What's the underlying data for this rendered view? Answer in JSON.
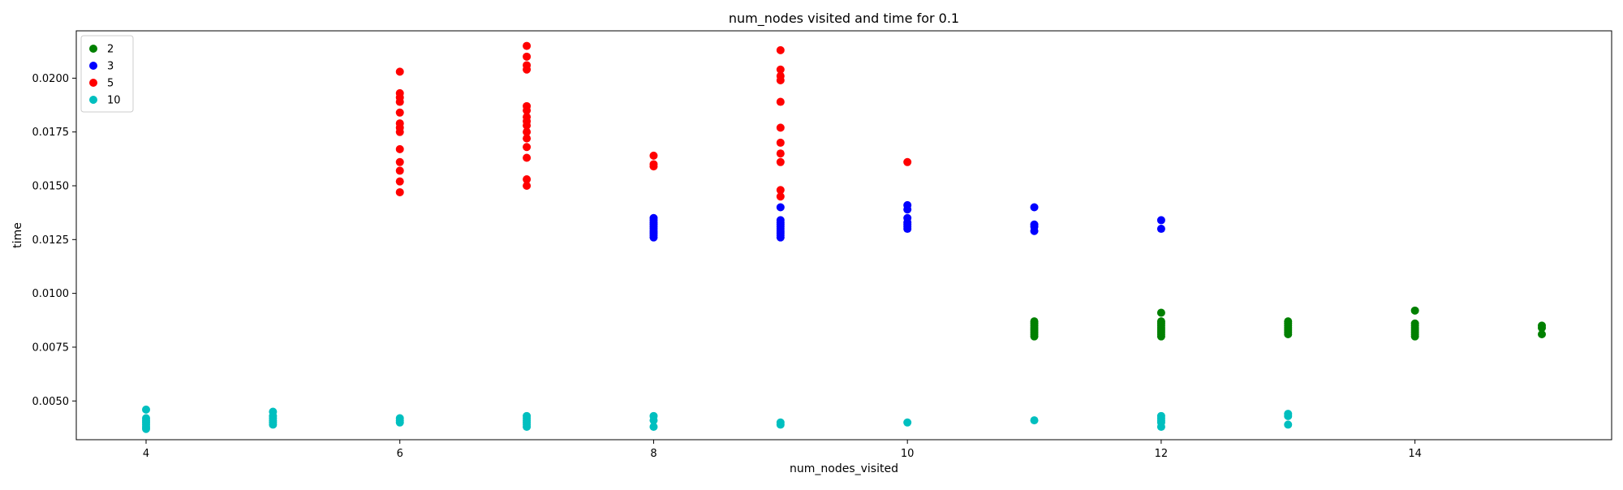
{
  "chart_data": {
    "type": "scatter",
    "title": "num_nodes visited and time for 0.1",
    "xlabel": "num_nodes_visited",
    "ylabel": "time",
    "xlim": [
      3.45,
      15.55
    ],
    "ylim": [
      0.0032,
      0.0222
    ],
    "x_ticks": [
      4,
      6,
      8,
      10,
      12,
      14
    ],
    "x_tick_labels": [
      "4",
      "6",
      "8",
      "10",
      "12",
      "14"
    ],
    "y_ticks": [
      0.005,
      0.0075,
      0.01,
      0.0125,
      0.015,
      0.0175,
      0.02
    ],
    "y_tick_labels": [
      "0.0050",
      "0.0075",
      "0.0100",
      "0.0125",
      "0.0150",
      "0.0175",
      "0.0200"
    ],
    "grid": false,
    "legend_position": "top-left",
    "series": [
      {
        "name": "2",
        "color": "#008000",
        "points": [
          [
            11,
            0.008
          ],
          [
            11,
            0.0081
          ],
          [
            11,
            0.0082
          ],
          [
            11,
            0.0083
          ],
          [
            11,
            0.0084
          ],
          [
            11,
            0.0085
          ],
          [
            11,
            0.0086
          ],
          [
            11,
            0.0087
          ],
          [
            12,
            0.008
          ],
          [
            12,
            0.0081
          ],
          [
            12,
            0.0082
          ],
          [
            12,
            0.0083
          ],
          [
            12,
            0.0084
          ],
          [
            12,
            0.0085
          ],
          [
            12,
            0.0086
          ],
          [
            12,
            0.0087
          ],
          [
            12,
            0.0091
          ],
          [
            13,
            0.0081
          ],
          [
            13,
            0.0082
          ],
          [
            13,
            0.0083
          ],
          [
            13,
            0.0084
          ],
          [
            13,
            0.0085
          ],
          [
            13,
            0.0086
          ],
          [
            13,
            0.0087
          ],
          [
            14,
            0.008
          ],
          [
            14,
            0.0081
          ],
          [
            14,
            0.0082
          ],
          [
            14,
            0.0083
          ],
          [
            14,
            0.0084
          ],
          [
            14,
            0.0085
          ],
          [
            14,
            0.0086
          ],
          [
            14,
            0.0092
          ],
          [
            15,
            0.0081
          ],
          [
            15,
            0.0084
          ],
          [
            15,
            0.0085
          ]
        ]
      },
      {
        "name": "3",
        "color": "#0000ff",
        "points": [
          [
            8,
            0.0126
          ],
          [
            8,
            0.0127
          ],
          [
            8,
            0.0128
          ],
          [
            8,
            0.0129
          ],
          [
            8,
            0.013
          ],
          [
            8,
            0.0131
          ],
          [
            8,
            0.0132
          ],
          [
            8,
            0.0133
          ],
          [
            8,
            0.0134
          ],
          [
            8,
            0.0135
          ],
          [
            9,
            0.0126
          ],
          [
            9,
            0.0127
          ],
          [
            9,
            0.0128
          ],
          [
            9,
            0.0129
          ],
          [
            9,
            0.013
          ],
          [
            9,
            0.0131
          ],
          [
            9,
            0.0132
          ],
          [
            9,
            0.0133
          ],
          [
            9,
            0.0134
          ],
          [
            9,
            0.014
          ],
          [
            10,
            0.013
          ],
          [
            10,
            0.0131
          ],
          [
            10,
            0.0132
          ],
          [
            10,
            0.0133
          ],
          [
            10,
            0.0135
          ],
          [
            10,
            0.0139
          ],
          [
            10,
            0.0141
          ],
          [
            11,
            0.0129
          ],
          [
            11,
            0.0131
          ],
          [
            11,
            0.0132
          ],
          [
            11,
            0.014
          ],
          [
            12,
            0.013
          ],
          [
            12,
            0.0134
          ]
        ]
      },
      {
        "name": "5",
        "color": "#ff0000",
        "points": [
          [
            6,
            0.0147
          ],
          [
            6,
            0.0152
          ],
          [
            6,
            0.0157
          ],
          [
            6,
            0.0161
          ],
          [
            6,
            0.0167
          ],
          [
            6,
            0.0175
          ],
          [
            6,
            0.0177
          ],
          [
            6,
            0.0179
          ],
          [
            6,
            0.0184
          ],
          [
            6,
            0.0189
          ],
          [
            6,
            0.0191
          ],
          [
            6,
            0.0193
          ],
          [
            6,
            0.0203
          ],
          [
            7,
            0.015
          ],
          [
            7,
            0.0153
          ],
          [
            7,
            0.0163
          ],
          [
            7,
            0.0168
          ],
          [
            7,
            0.0172
          ],
          [
            7,
            0.0175
          ],
          [
            7,
            0.0178
          ],
          [
            7,
            0.018
          ],
          [
            7,
            0.0182
          ],
          [
            7,
            0.0185
          ],
          [
            7,
            0.0187
          ],
          [
            7,
            0.0204
          ],
          [
            7,
            0.0206
          ],
          [
            7,
            0.021
          ],
          [
            7,
            0.0215
          ],
          [
            8,
            0.0159
          ],
          [
            8,
            0.016
          ],
          [
            8,
            0.0164
          ],
          [
            9,
            0.0145
          ],
          [
            9,
            0.0148
          ],
          [
            9,
            0.0161
          ],
          [
            9,
            0.0165
          ],
          [
            9,
            0.017
          ],
          [
            9,
            0.0177
          ],
          [
            9,
            0.0189
          ],
          [
            9,
            0.0199
          ],
          [
            9,
            0.0201
          ],
          [
            9,
            0.0204
          ],
          [
            9,
            0.0213
          ],
          [
            10,
            0.0161
          ]
        ]
      },
      {
        "name": "10",
        "color": "#00bfbf",
        "points": [
          [
            4,
            0.0037
          ],
          [
            4,
            0.0038
          ],
          [
            4,
            0.0039
          ],
          [
            4,
            0.004
          ],
          [
            4,
            0.0041
          ],
          [
            4,
            0.0042
          ],
          [
            4,
            0.0046
          ],
          [
            5,
            0.0039
          ],
          [
            5,
            0.004
          ],
          [
            5,
            0.0041
          ],
          [
            5,
            0.0042
          ],
          [
            5,
            0.0043
          ],
          [
            5,
            0.0045
          ],
          [
            6,
            0.004
          ],
          [
            6,
            0.0041
          ],
          [
            6,
            0.0042
          ],
          [
            7,
            0.0038
          ],
          [
            7,
            0.0039
          ],
          [
            7,
            0.004
          ],
          [
            7,
            0.0041
          ],
          [
            7,
            0.0042
          ],
          [
            7,
            0.0043
          ],
          [
            8,
            0.0038
          ],
          [
            8,
            0.0041
          ],
          [
            8,
            0.0043
          ],
          [
            9,
            0.0039
          ],
          [
            9,
            0.004
          ],
          [
            10,
            0.004
          ],
          [
            11,
            0.0041
          ],
          [
            12,
            0.0038
          ],
          [
            12,
            0.004
          ],
          [
            12,
            0.0041
          ],
          [
            12,
            0.0042
          ],
          [
            12,
            0.0043
          ],
          [
            13,
            0.0039
          ],
          [
            13,
            0.0043
          ],
          [
            13,
            0.0044
          ]
        ]
      }
    ]
  }
}
